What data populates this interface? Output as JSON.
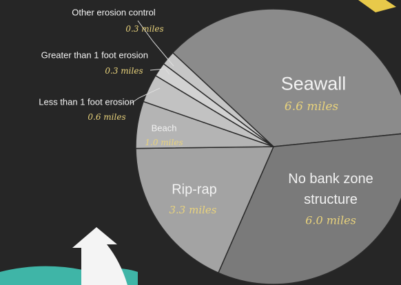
{
  "chart_data": {
    "type": "pie",
    "categories": [
      "Seawall",
      "No bank zone structure",
      "Rip-rap",
      "Beach",
      "Less than 1 foot erosion",
      "Greater than 1 foot erosion",
      "Other erosion control"
    ],
    "values": [
      6.6,
      6.0,
      3.3,
      1.0,
      0.6,
      0.3,
      0.3
    ],
    "value_labels": [
      "6.6 miles",
      "6.0 miles",
      "3.3 miles",
      "1.0 miles",
      "0.6 miles",
      "0.3 miles",
      "0.3 miles"
    ],
    "colors": [
      "#8b8b8b",
      "#7a7a7a",
      "#a3a3a3",
      "#b4b4b4",
      "#c2c2c2",
      "#d2d2d2",
      "#c6c6c6"
    ]
  }
}
